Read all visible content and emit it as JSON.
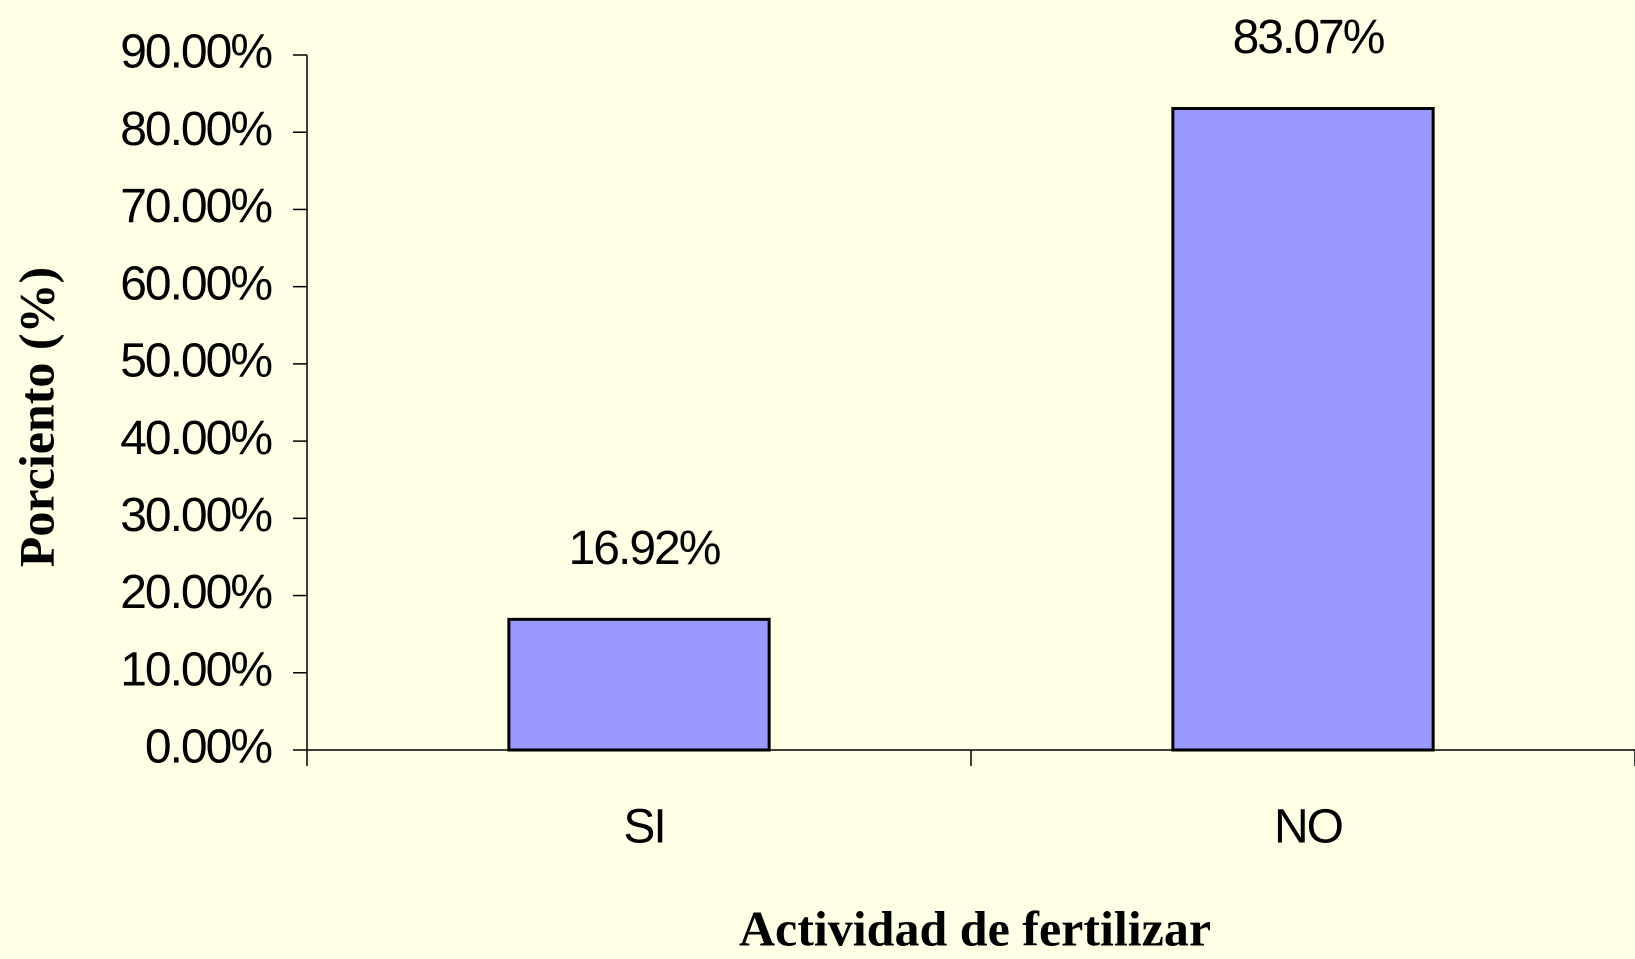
{
  "chart_data": {
    "type": "bar",
    "categories": [
      "SI",
      "NO"
    ],
    "values": [
      16.92,
      83.07
    ],
    "value_labels": [
      "16.92%",
      "83.07%"
    ],
    "color": "#9999FF",
    "xlabel": "Actividad de fertilizar",
    "ylabel": "Porciento (%)",
    "ylim": [
      0,
      90
    ],
    "yticks": [
      {
        "value": 0,
        "label": "0.00%"
      },
      {
        "value": 10,
        "label": "10.00%"
      },
      {
        "value": 20,
        "label": "20.00%"
      },
      {
        "value": 30,
        "label": "30.00%"
      },
      {
        "value": 40,
        "label": "40.00%"
      },
      {
        "value": 50,
        "label": "50.00%"
      },
      {
        "value": 60,
        "label": "60.00%"
      },
      {
        "value": 70,
        "label": "70.00%"
      },
      {
        "value": 80,
        "label": "80.00%"
      },
      {
        "value": 90,
        "label": "90.00%"
      }
    ],
    "grid": false
  }
}
